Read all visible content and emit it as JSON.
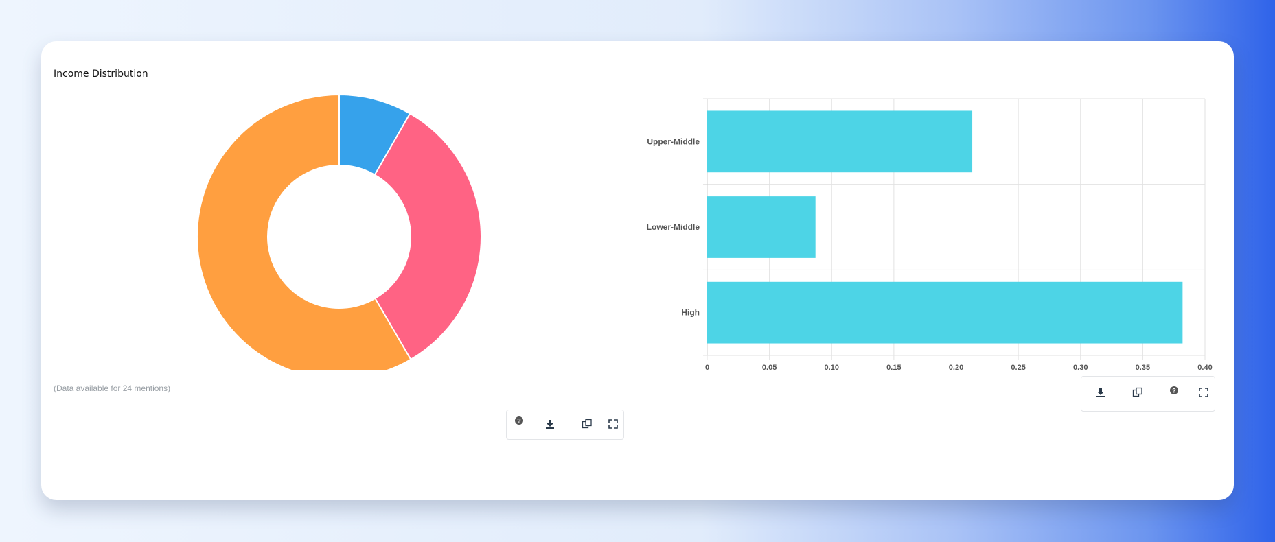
{
  "card": {
    "title": "Income Distribution",
    "note": "(Data available for 24 mentions)"
  },
  "chart_data": [
    {
      "type": "pie",
      "variant": "donut",
      "labels": [
        "",
        "",
        ""
      ],
      "values": [
        0.083,
        0.333,
        0.584
      ],
      "colors": [
        "#36a2eb",
        "#ff6384",
        "#ff9f40"
      ]
    },
    {
      "type": "bar",
      "orientation": "horizontal",
      "categories": [
        "Upper-Middle",
        "Lower-Middle",
        "High"
      ],
      "values": [
        0.213,
        0.087,
        0.382
      ],
      "color": "#4dd4e6",
      "xlim": [
        0,
        0.4
      ],
      "xticks": [
        "0",
        "0.05",
        "0.10",
        "0.15",
        "0.20",
        "0.25",
        "0.30",
        "0.35",
        "0.40"
      ],
      "grid": true
    }
  ],
  "toolbars": {
    "left": [
      "help-icon",
      "download-icon",
      "copy-icon",
      "fullscreen-icon"
    ],
    "right": [
      "download-icon",
      "copy-icon",
      "help-icon",
      "fullscreen-icon"
    ]
  }
}
